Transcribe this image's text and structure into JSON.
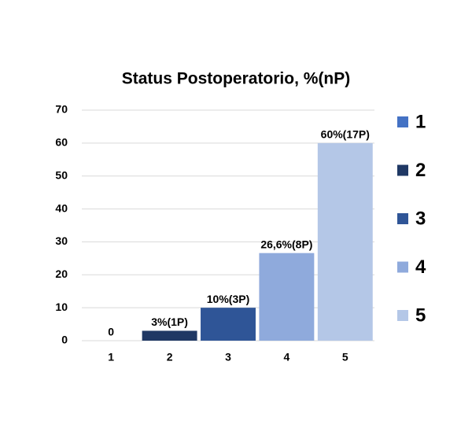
{
  "chart_data": {
    "type": "bar",
    "title": "Status Postoperatorio, %(nP)",
    "categories": [
      "1",
      "2",
      "3",
      "4",
      "5"
    ],
    "values": [
      0,
      3,
      10,
      26.6,
      60
    ],
    "value_labels": [
      "0",
      "3%(1P)",
      "10%(3P)",
      "26,6%(8P)",
      "60%(17P)"
    ],
    "colors": [
      "#4472c4",
      "#1f3864",
      "#2f5597",
      "#8faadc",
      "#b4c7e7"
    ],
    "ylim": [
      0,
      70
    ],
    "yticks": [
      0,
      10,
      20,
      30,
      40,
      50,
      60,
      70
    ],
    "grid": true,
    "legend": "right"
  }
}
